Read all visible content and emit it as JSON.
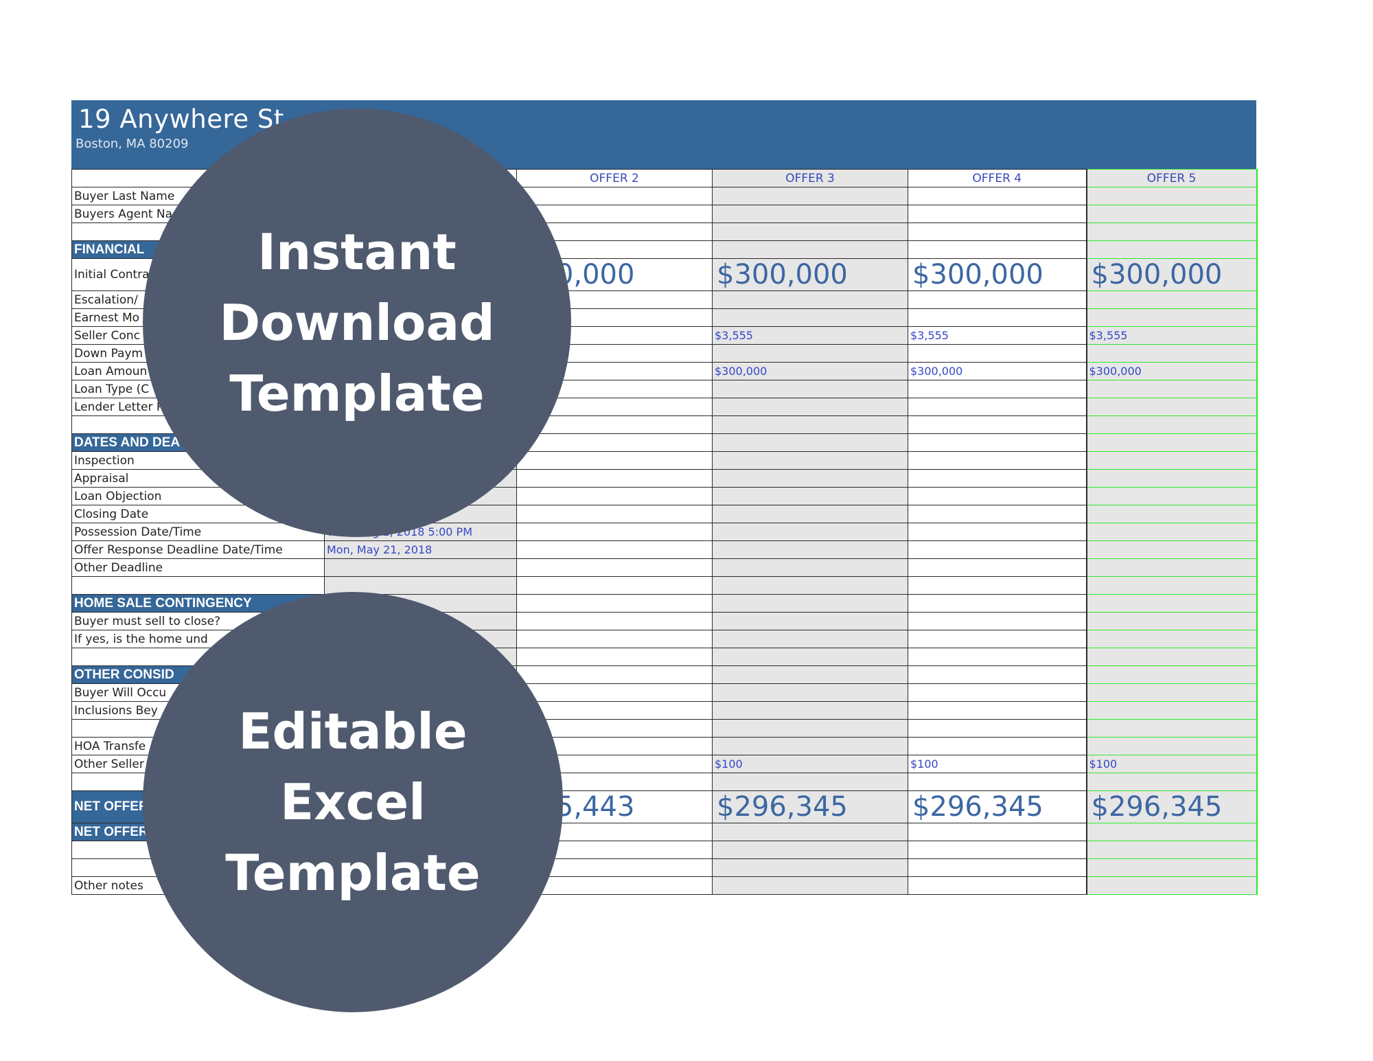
{
  "banner": {
    "address": "19 Anywhere St",
    "city": "Boston, MA 80209"
  },
  "offers": [
    "OFFER 2",
    "OFFER 3",
    "OFFER 4",
    "OFFER 5"
  ],
  "rows": {
    "buyer_last_name": "Buyer Last Name",
    "buyers_agent": "Buyers Agent Na",
    "financial": "FINANCIAL",
    "initial_contract": "Initial Contra",
    "initial_values": [
      "000,000",
      "$300,000",
      "$300,000",
      "$300,000"
    ],
    "escalation": "Escalation/",
    "earnest": "Earnest Mo",
    "seller_conc": "Seller Conc",
    "seller_conc_values": [
      "",
      "$3,555",
      "$3,555",
      "$3,555"
    ],
    "down_payment": "Down Paym",
    "loan_amount": "Loan Amoun",
    "loan_amount_values": [
      "000",
      "$300,000",
      "$300,000",
      "$300,000"
    ],
    "loan_type": "Loan Type (C",
    "lender_letter": "Lender Letter R",
    "dates": "DATES AND DEA",
    "inspection": "Inspection",
    "appraisal": "Appraisal",
    "loan_objection": "Loan Objection",
    "closing_date": "Closing Date",
    "possession": "Possession Date/Time",
    "possession_value": "Wed, Aug 1, 2018 5:00 PM",
    "offer_response": "Offer Response Deadline Date/Time",
    "offer_response_value": "Mon, May 21, 2018",
    "other_deadline": "Other Deadline",
    "home_sale": "HOME SALE CONTINGENCY",
    "buyer_must_sell": "Buyer must sell to close?",
    "if_yes": "If yes, is the home und",
    "other_consid": "OTHER CONSID",
    "buyer_will_occ": "Buyer Will Occu",
    "inclusions": "Inclusions Bey",
    "hoa": "HOA Transfe",
    "other_seller": "Other Seller",
    "other_seller_values": [
      "",
      "$100",
      "$100",
      "$100"
    ],
    "net_offer_1": "NET OFFER",
    "net_offer_values": [
      "995,443",
      "$296,345",
      "$296,345",
      "$296,345"
    ],
    "net_offer_2": "NET OFFER",
    "other_notes": "Other notes"
  },
  "badges": {
    "top": [
      "Instant",
      "Download",
      "Template"
    ],
    "bottom": [
      "Editable",
      "Excel",
      "Template"
    ]
  },
  "colors": {
    "banner": "#356799",
    "circle": "#4f5a6e",
    "highlight": "#2ee82e"
  }
}
